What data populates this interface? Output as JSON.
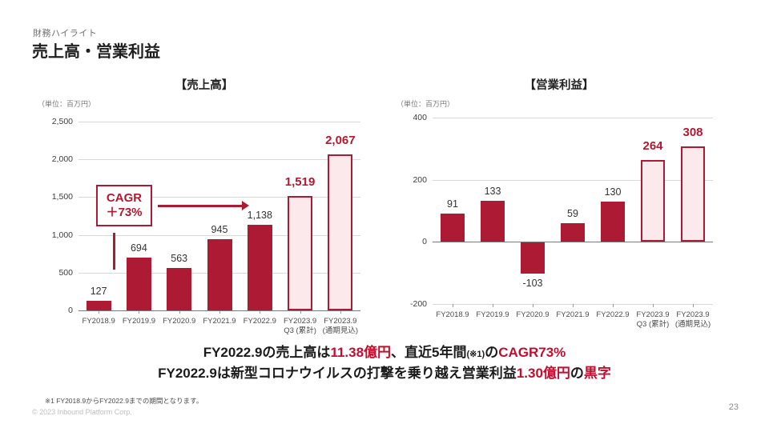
{
  "header": {
    "kicker": "財務ハイライト",
    "title": "売上高・営業利益"
  },
  "colors": {
    "bar_red": "#ac1a33",
    "bar_light_fill": "#fbe9ec",
    "highlight_label_red": "#b2182f",
    "accent_text_red": "#c30d2e"
  },
  "chart_data": [
    {
      "type": "bar",
      "title": "【売上高】",
      "unit_label": "（単位：百万円）",
      "categories": [
        [
          "FY2018.9"
        ],
        [
          "FY2019.9"
        ],
        [
          "FY2020.9"
        ],
        [
          "FY2021.9"
        ],
        [
          "FY2022.9"
        ],
        [
          "FY2023.9",
          "Q3 (累計)"
        ],
        [
          "FY2023.9",
          "(通期見込)"
        ]
      ],
      "values": [
        127,
        694,
        563,
        945,
        1138,
        1519,
        2067
      ],
      "value_labels": [
        "127",
        "694",
        "563",
        "945",
        "1,138",
        "1,519",
        "2,067"
      ],
      "highlight": [
        false,
        false,
        false,
        false,
        false,
        true,
        true
      ],
      "ylim": [
        0,
        2500
      ],
      "yticks": [
        2500,
        2000,
        1500,
        1000,
        500,
        0
      ],
      "ytick_labels": [
        "2,500",
        "2,000",
        "1,500",
        "1,000",
        "500",
        "0"
      ],
      "grid": "horizontal",
      "legend": "none",
      "annotation": {
        "line1": "CAGR",
        "line2": "＋73%"
      }
    },
    {
      "type": "bar",
      "title": "【営業利益】",
      "unit_label": "（単位：百万円）",
      "categories": [
        [
          "FY2018.9"
        ],
        [
          "FY2019.9"
        ],
        [
          "FY2020.9"
        ],
        [
          "FY2021.9"
        ],
        [
          "FY2022.9"
        ],
        [
          "FY2023.9",
          "Q3 (累計)"
        ],
        [
          "FY2023.9",
          "(通期見込)"
        ]
      ],
      "values": [
        91,
        133,
        -103,
        59,
        130,
        264,
        308
      ],
      "value_labels": [
        "91",
        "133",
        "-103",
        "59",
        "130",
        "264",
        "308"
      ],
      "highlight": [
        false,
        false,
        false,
        false,
        false,
        true,
        true
      ],
      "ylim": [
        -200,
        400
      ],
      "yticks": [
        400,
        200,
        0,
        -200
      ],
      "ytick_labels": [
        "400",
        "200",
        "0",
        "-200"
      ],
      "grid": "horizontal",
      "legend": "none"
    }
  ],
  "message": {
    "line1": [
      {
        "text": "FY2022.9の売上高は",
        "style": "dark"
      },
      {
        "text": "11.38億円",
        "style": "red"
      },
      {
        "text": "、直近5年間",
        "style": "dark"
      },
      {
        "text": "(※1)",
        "style": "dark-small"
      },
      {
        "text": "の",
        "style": "dark"
      },
      {
        "text": "CAGR73%",
        "style": "red"
      }
    ],
    "line2": [
      {
        "text": "FY2022.9は新型コロナウイルスの打撃を乗り越え営業利益",
        "style": "dark"
      },
      {
        "text": "1.30億円",
        "style": "red"
      },
      {
        "text": "の",
        "style": "dark"
      },
      {
        "text": "黒字",
        "style": "red"
      }
    ]
  },
  "footnote": "※1 FY2018.9からFY2022.9までの期間となります。",
  "footer": {
    "copyright": "© 2023 Inbound Platform Corp.",
    "page_number": "23"
  }
}
